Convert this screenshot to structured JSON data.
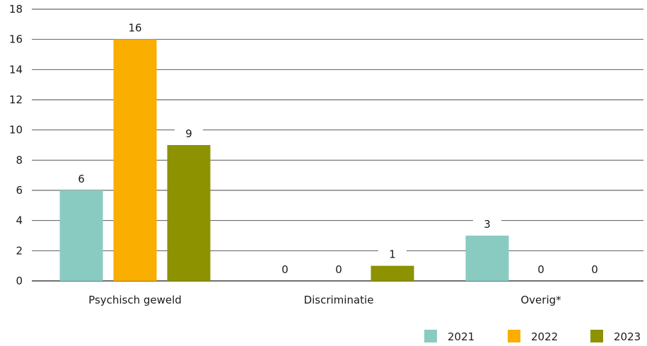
{
  "chart_data": {
    "type": "bar",
    "categories": [
      "Psychisch geweld",
      "Discriminatie",
      "Overig*"
    ],
    "series": [
      {
        "name": "2021",
        "values": [
          6,
          0,
          3
        ],
        "color": "#8acbc1"
      },
      {
        "name": "2022",
        "values": [
          16,
          0,
          0
        ],
        "color": "#f9ae00"
      },
      {
        "name": "2023",
        "values": [
          9,
          1,
          0
        ],
        "color": "#8c9200"
      }
    ],
    "yticks": [
      "0",
      "2",
      "4",
      "6",
      "8",
      "10",
      "12",
      "14",
      "16",
      "18"
    ],
    "ylim": [
      0,
      18
    ],
    "grid": true,
    "legend": "bottom-right"
  }
}
